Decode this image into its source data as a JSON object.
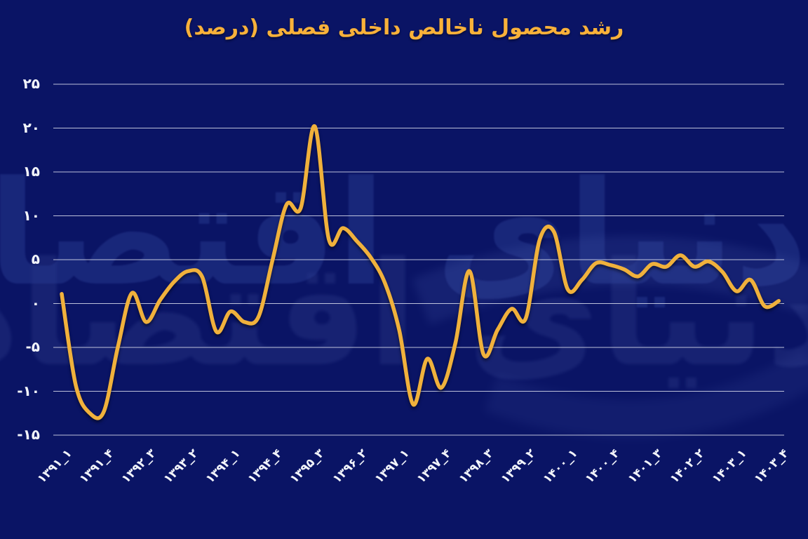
{
  "title": "رشد محصول ناخالص داخلی فصلی (درصد)",
  "watermark": {
    "text": "دنیای اقتصاد"
  },
  "colors": {
    "background": "#0a1465",
    "title": "#f8b13a",
    "line": "#f0b13c",
    "gridline": "#e9ecf6",
    "tick_label": "#f2f4fa",
    "watermark": "#25378c",
    "watermark_light": "#4c5ca8"
  },
  "chart_data": {
    "type": "line",
    "title": "رشد محصول ناخالص داخلی فصلی (درصد)",
    "smoothing": "spline",
    "grid": "horizontal",
    "legend": "none",
    "xlabel": "",
    "ylabel": "",
    "ylim": [
      -17.5,
      27.5
    ],
    "y_ticks": [
      {
        "label": "۲۵",
        "value": 25
      },
      {
        "label": "۲۰",
        "value": 20
      },
      {
        "label": "۱۵",
        "value": 15
      },
      {
        "label": "۱۰",
        "value": 10
      },
      {
        "label": "۵",
        "value": 5
      },
      {
        "label": "۰",
        "value": 0
      },
      {
        "label": "-۵",
        "value": -5
      },
      {
        "label": "-۱۰",
        "value": -10
      },
      {
        "label": "-۱۵",
        "value": -15
      }
    ],
    "x_tick_every": 3,
    "x_tick_labels": [
      "۱۳۹۱_۱",
      "۱۳۹۱_۴",
      "۱۳۹۲_۳",
      "۱۳۹۳_۲",
      "۱۳۹۴_۱",
      "۱۳۹۴_۴",
      "۱۳۹۵_۳",
      "۱۳۹۶_۲",
      "۱۳۹۷_۱",
      "۱۳۹۷_۴",
      "۱۳۹۸_۳",
      "۱۳۹۹_۲",
      "۱۴۰۰_۱",
      "۱۴۰۰_۴",
      "۱۴۰۱_۳",
      "۱۴۰۲_۲",
      "۱۴۰۳_۱",
      "۱۴۰۳_۴"
    ],
    "categories": [
      "۱۳۹۱_۱",
      "۱۳۹۱_۲",
      "۱۳۹۱_۳",
      "۱۳۹۱_۴",
      "۱۳۹۲_۱",
      "۱۳۹۲_۲",
      "۱۳۹۲_۳",
      "۱۳۹۲_۴",
      "۱۳۹۳_۱",
      "۱۳۹۳_۲",
      "۱۳۹۳_۳",
      "۱۳۹۳_۴",
      "۱۳۹۴_۱",
      "۱۳۹۴_۲",
      "۱۳۹۴_۳",
      "۱۳۹۴_۴",
      "۱۳۹۵_۱",
      "۱۳۹۵_۲",
      "۱۳۹۵_۳",
      "۱۳۹۵_۴",
      "۱۳۹۶_۱",
      "۱۳۹۶_۲",
      "۱۳۹۶_۳",
      "۱۳۹۶_۴",
      "۱۳۹۷_۱",
      "۱۳۹۷_۲",
      "۱۳۹۷_۳",
      "۱۳۹۷_۴",
      "۱۳۹۸_۱",
      "۱۳۹۸_۲",
      "۱۳۹۸_۳",
      "۱۳۹۸_۴",
      "۱۳۹۹_۱",
      "۱۳۹۹_۲",
      "۱۳۹۹_۳",
      "۱۳۹۹_۴",
      "۱۴۰۰_۱",
      "۱۴۰۰_۲",
      "۱۴۰۰_۳",
      "۱۴۰۰_۴",
      "۱۴۰۱_۱",
      "۱۴۰۱_۲",
      "۱۴۰۱_۳",
      "۱۴۰۱_۴",
      "۱۴۰۲_۱",
      "۱۴۰۲_۲",
      "۱۴۰۲_۳",
      "۱۴۰۲_۴",
      "۱۴۰۳_۱",
      "۱۴۰۳_۲",
      "۱۴۰۳_۳",
      "۱۴۰۳_۴"
    ],
    "values": [
      1.1,
      -9.3,
      -12.5,
      -12.3,
      -4.9,
      1.2,
      -2.1,
      0.4,
      2.5,
      3.7,
      3.0,
      -3.2,
      -0.9,
      -2.1,
      -1.5,
      5.0,
      11.3,
      10.9,
      20.2,
      7.3,
      8.6,
      7.1,
      5.2,
      2.3,
      -3.0,
      -11.5,
      -6.3,
      -9.6,
      -4.5,
      3.7,
      -5.8,
      -3.0,
      -0.6,
      -1.7,
      7.3,
      8.2,
      1.6,
      2.7,
      4.6,
      4.4,
      3.9,
      3.1,
      4.5,
      4.2,
      5.5,
      4.2,
      4.8,
      3.6,
      1.4,
      2.7,
      -0.3,
      0.3
    ]
  }
}
